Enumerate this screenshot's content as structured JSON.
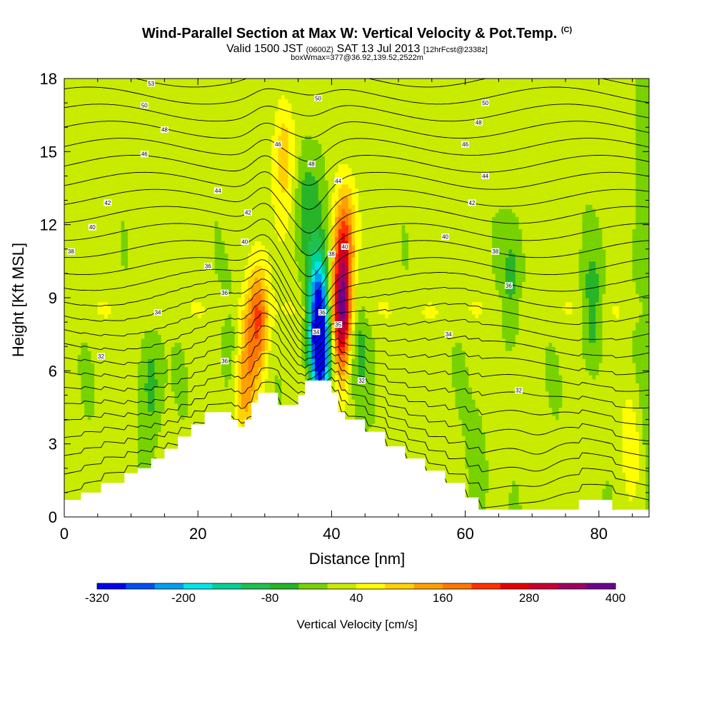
{
  "header": {
    "title": "Wind-Parallel Section at Max W: Vertical Velocity & Pot.Temp.",
    "copyright": "(C)",
    "valid_prefix": "Valid 1500 JST",
    "valid_utc": "(0600Z)",
    "valid_date": "SAT 13 Jul 2013",
    "forecast_info": "[12hrFcst@2338z]",
    "box_info": "boxWmax=377@36.92,139.52,2522m"
  },
  "chart_data": {
    "type": "heatmap",
    "xlabel": "Distance [nm]",
    "ylabel": "Height [Kft MSL]",
    "xlim": [
      0,
      87.5
    ],
    "ylim": [
      0,
      18
    ],
    "x_ticks": [
      0,
      20,
      40,
      60,
      80
    ],
    "y_ticks": [
      0,
      3,
      6,
      9,
      12,
      15,
      18
    ],
    "colorbar": {
      "label": "Vertical Velocity [cm/s]",
      "tick_labels": [
        "-320",
        "-200",
        "-80",
        "40",
        "160",
        "280",
        "400"
      ],
      "tick_values": [
        -320,
        -200,
        -80,
        40,
        160,
        280,
        400
      ],
      "range": [
        -320,
        400
      ],
      "colors": [
        "#0000f0",
        "#0050f0",
        "#00a0f0",
        "#00e6e6",
        "#00d296",
        "#20c050",
        "#28b428",
        "#78d200",
        "#c8eb00",
        "#ffff00",
        "#ffd200",
        "#ffa000",
        "#ff7800",
        "#ff3200",
        "#e60000",
        "#c80032",
        "#a00064",
        "#6e008c"
      ]
    },
    "velocity_features": [
      {
        "x": 29,
        "y": 8.0,
        "w": 180
      },
      {
        "x": 27,
        "y": 5.5,
        "w": 120
      },
      {
        "x": 38,
        "y": 8.2,
        "w": -310
      },
      {
        "x": 38.5,
        "y": 6.5,
        "w": -200
      },
      {
        "x": 41.5,
        "y": 8.5,
        "w": 320
      },
      {
        "x": 42,
        "y": 11.5,
        "w": 160
      },
      {
        "x": 36,
        "y": 12.5,
        "w": -60
      },
      {
        "x": 38,
        "y": 13.8,
        "w": -40
      },
      {
        "x": 33,
        "y": 15.0,
        "w": 90
      },
      {
        "x": 44,
        "y": 7.0,
        "w": -60
      },
      {
        "x": 25,
        "y": 7.0,
        "w": -50
      },
      {
        "x": 13,
        "y": 5.5,
        "w": -80
      },
      {
        "x": 67,
        "y": 9.5,
        "w": -70
      },
      {
        "x": 79,
        "y": 8.5,
        "w": -80
      },
      {
        "x": 85,
        "y": 3.0,
        "w": 60
      },
      {
        "x": 84,
        "y": 16.0,
        "w": 30
      },
      {
        "x": 62,
        "y": 2.0,
        "w": -40
      }
    ],
    "contour_labels": [
      {
        "x": 13,
        "y": 17.8,
        "text": "53"
      },
      {
        "x": 12,
        "y": 16.9,
        "text": "50"
      },
      {
        "x": 15,
        "y": 15.9,
        "text": "48"
      },
      {
        "x": 12,
        "y": 14.9,
        "text": "46"
      },
      {
        "x": 23,
        "y": 13.4,
        "text": "44"
      },
      {
        "x": 6.5,
        "y": 12.9,
        "text": "42"
      },
      {
        "x": 4.2,
        "y": 11.9,
        "text": "40"
      },
      {
        "x": 1,
        "y": 10.9,
        "text": "38"
      },
      {
        "x": 21.5,
        "y": 10.3,
        "text": "36"
      },
      {
        "x": 14,
        "y": 8.4,
        "text": "34"
      },
      {
        "x": 5.5,
        "y": 6.6,
        "text": "32"
      },
      {
        "x": 24,
        "y": 9.2,
        "text": "36"
      },
      {
        "x": 24,
        "y": 6.4,
        "text": "36"
      },
      {
        "x": 27,
        "y": 11.3,
        "text": "40"
      },
      {
        "x": 27.5,
        "y": 12.5,
        "text": "42"
      },
      {
        "x": 32,
        "y": 15.3,
        "text": "46"
      },
      {
        "x": 37,
        "y": 14.5,
        "text": "48"
      },
      {
        "x": 38,
        "y": 17.2,
        "text": "50"
      },
      {
        "x": 41,
        "y": 13.8,
        "text": "44"
      },
      {
        "x": 40,
        "y": 10.8,
        "text": "38"
      },
      {
        "x": 42,
        "y": 11.1,
        "text": "40"
      },
      {
        "x": 38.6,
        "y": 8.4,
        "text": "36"
      },
      {
        "x": 37.7,
        "y": 7.6,
        "text": "34"
      },
      {
        "x": 41,
        "y": 7.9,
        "text": "35"
      },
      {
        "x": 44.5,
        "y": 5.6,
        "text": "32"
      },
      {
        "x": 63,
        "y": 17.0,
        "text": "50"
      },
      {
        "x": 62,
        "y": 16.2,
        "text": "48"
      },
      {
        "x": 60,
        "y": 15.3,
        "text": "46"
      },
      {
        "x": 63,
        "y": 14.0,
        "text": "44"
      },
      {
        "x": 61,
        "y": 12.9,
        "text": "42"
      },
      {
        "x": 57,
        "y": 11.5,
        "text": "40"
      },
      {
        "x": 64.5,
        "y": 10.9,
        "text": "38"
      },
      {
        "x": 66.5,
        "y": 9.5,
        "text": "36"
      },
      {
        "x": 57.5,
        "y": 7.5,
        "text": "34"
      },
      {
        "x": 68,
        "y": 5.2,
        "text": "32"
      }
    ]
  }
}
